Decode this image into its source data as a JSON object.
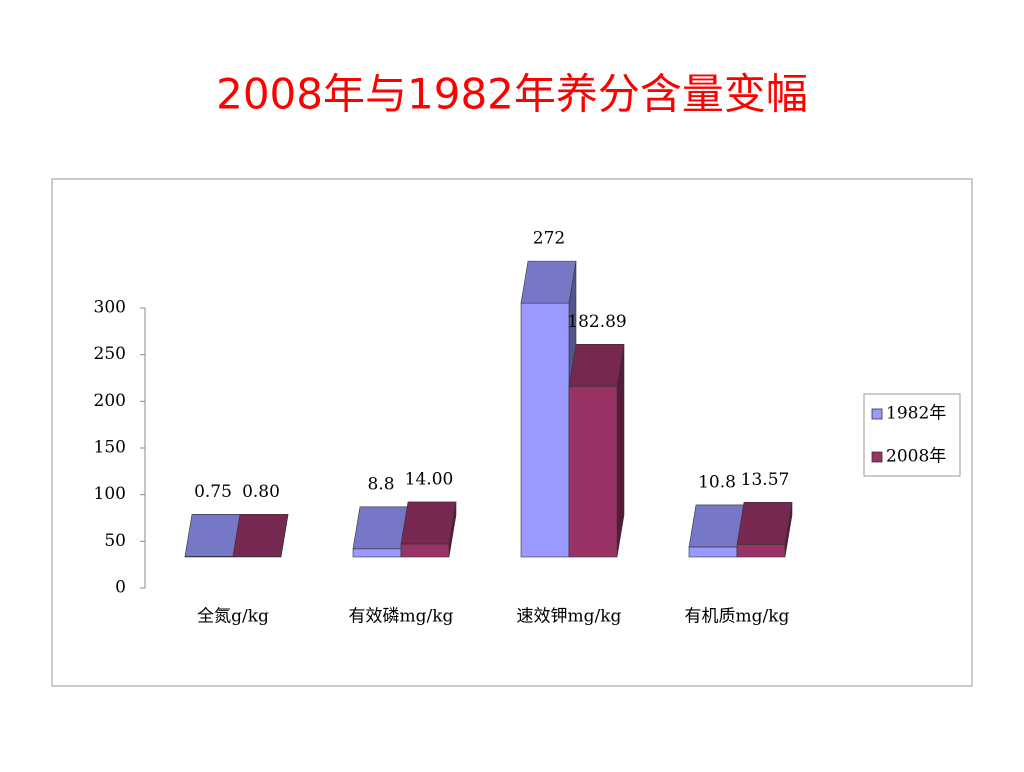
{
  "chart_data": {
    "type": "bar3d",
    "title": "2008年与1982年养分含量变幅",
    "categories": [
      "全氮g/kg",
      "有效磷mg/kg",
      "速效钾mg/kg",
      "有机质mg/kg"
    ],
    "series": [
      {
        "name": "1982年",
        "color": "#9999ff",
        "values": [
          0.75,
          8.8,
          272,
          10.8
        ],
        "value_labels": [
          "0.75",
          "8.8",
          "272",
          "10.8"
        ]
      },
      {
        "name": "2008年",
        "color": "#993366",
        "values": [
          0.8,
          14,
          182.89,
          13.57
        ],
        "value_labels": [
          "0.80",
          "14.00",
          "182.89",
          "13.57"
        ]
      }
    ],
    "ylim": [
      0,
      300
    ],
    "yticks": [
      0,
      50,
      100,
      150,
      200,
      250,
      300
    ],
    "legend": "right"
  }
}
